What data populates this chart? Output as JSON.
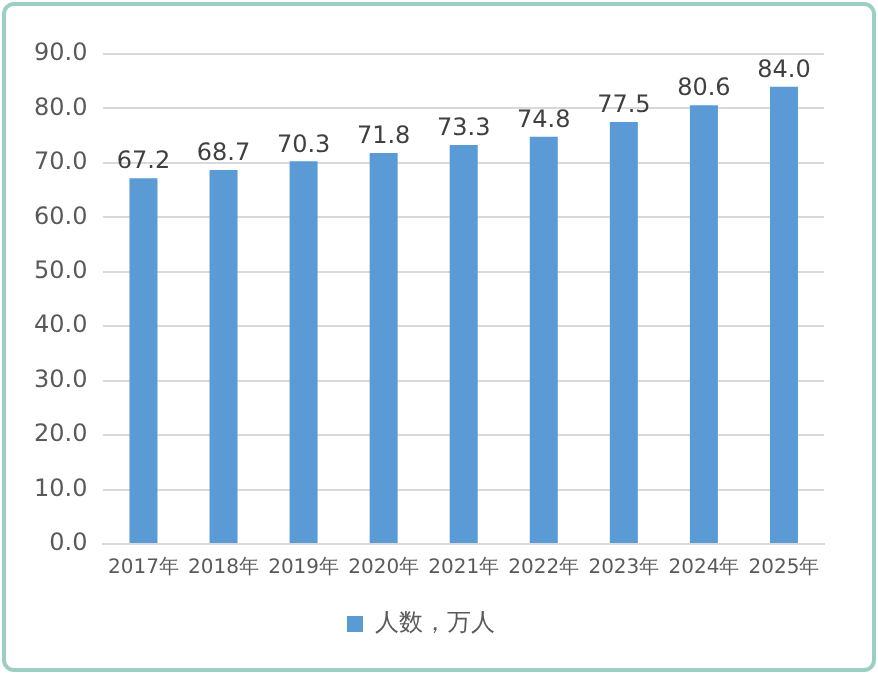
{
  "chart_data": {
    "type": "bar",
    "categories": [
      "2017年",
      "2018年",
      "2019年",
      "2020年",
      "2021年",
      "2022年",
      "2023年",
      "2024年",
      "2025年"
    ],
    "series": [
      {
        "name": "人数，万人",
        "color": "#5b9bd5",
        "values": [
          67.2,
          68.7,
          70.3,
          71.8,
          73.3,
          74.8,
          77.5,
          80.6,
          84.0
        ],
        "value_labels": [
          "67.2",
          "68.7",
          "70.3",
          "71.8",
          "73.3",
          "74.8",
          "77.5",
          "80.6",
          "84.0"
        ]
      }
    ],
    "ylim": [
      0,
      90
    ],
    "yticks": [
      {
        "value": 0,
        "label": "0.0"
      },
      {
        "value": 10,
        "label": "10.0"
      },
      {
        "value": 20,
        "label": "20.0"
      },
      {
        "value": 30,
        "label": "30.0"
      },
      {
        "value": 40,
        "label": "40.0"
      },
      {
        "value": 50,
        "label": "50.0"
      },
      {
        "value": 60,
        "label": "60.0"
      },
      {
        "value": 70,
        "label": "70.0"
      },
      {
        "value": 80,
        "label": "80.0"
      },
      {
        "value": 90,
        "label": "90.0"
      }
    ],
    "grid": "y",
    "legend": "bottom"
  }
}
